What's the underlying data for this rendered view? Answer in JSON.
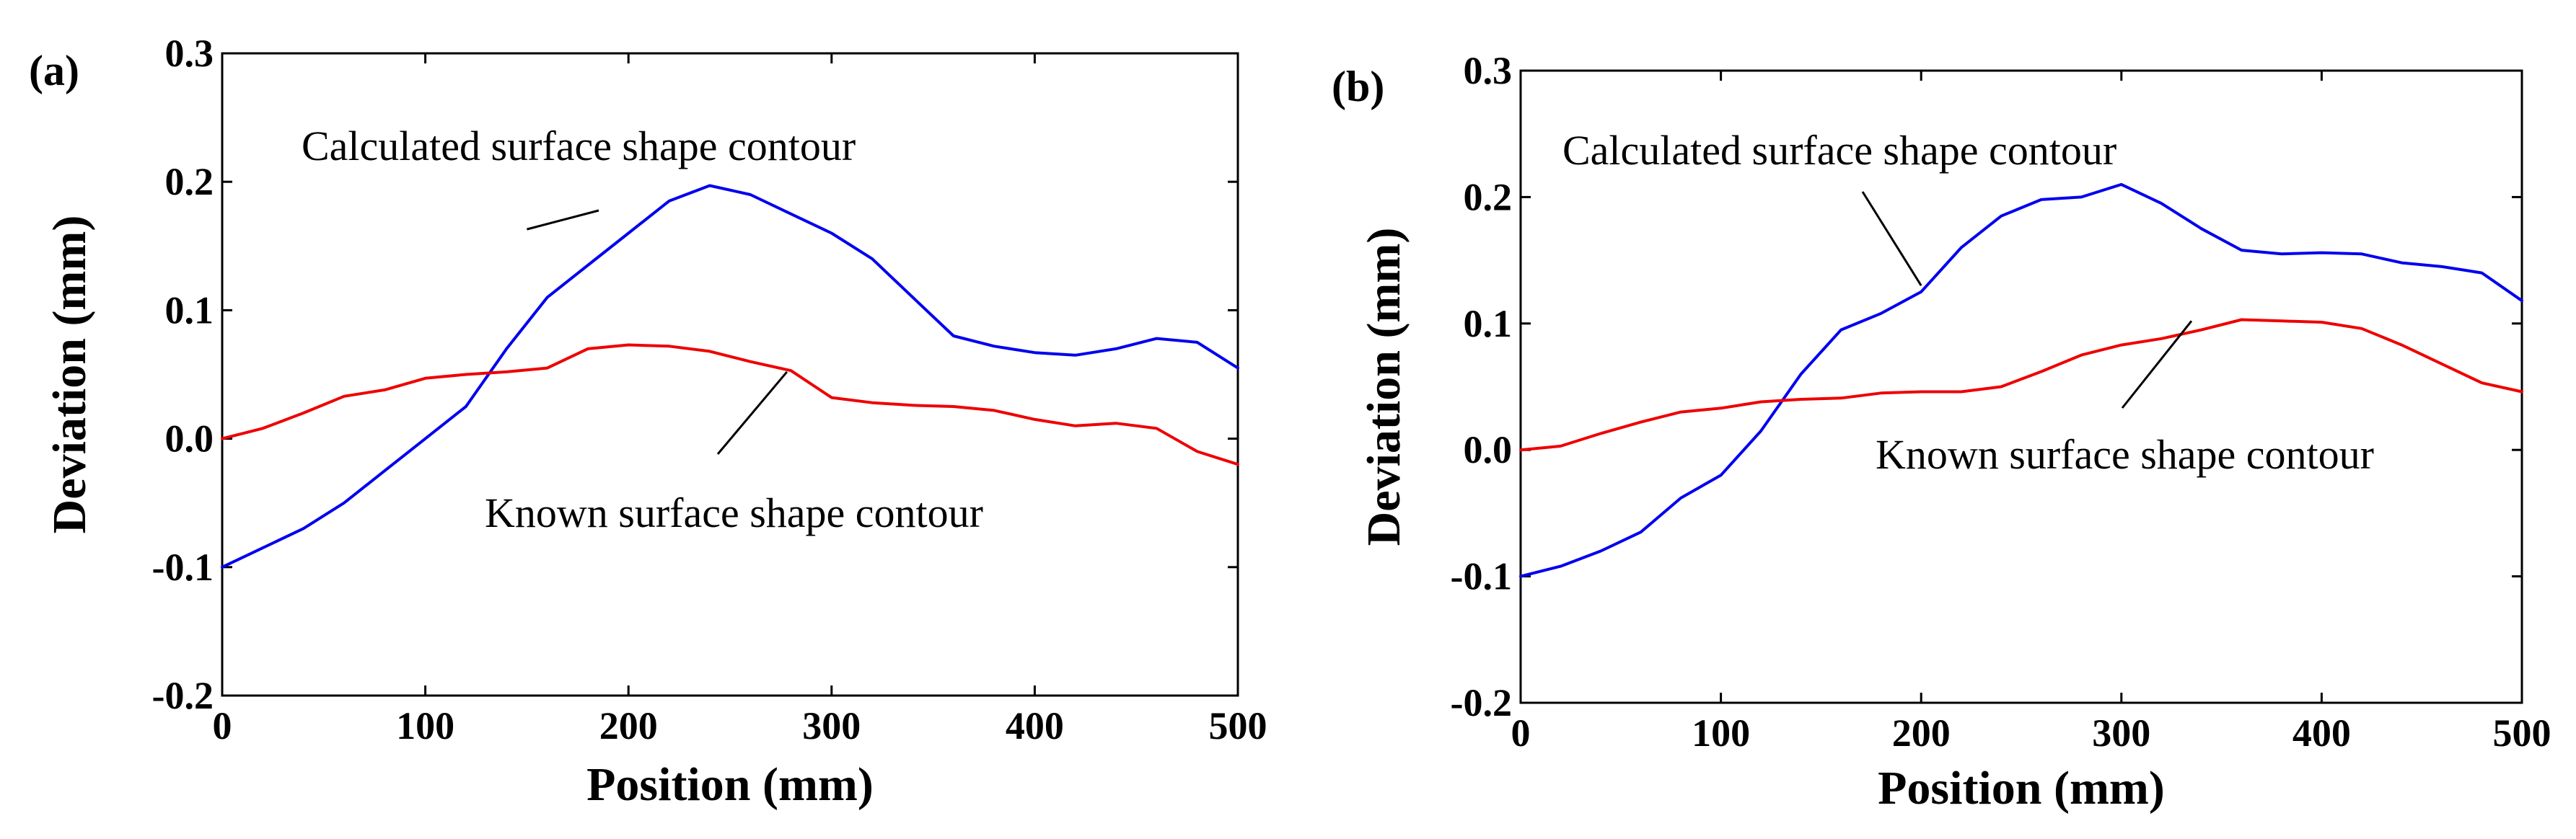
{
  "chart_data": [
    {
      "type": "line",
      "panel_label": "(a)",
      "xlabel": "Position (mm)",
      "ylabel": "Deviation  (mm)",
      "xlim": [
        0,
        500
      ],
      "ylim": [
        -0.2,
        0.3
      ],
      "xticks": [
        "0",
        "100",
        "200",
        "300",
        "400",
        "500"
      ],
      "yticks": [
        "-0.2",
        "-0.1",
        "0.0",
        "0.1",
        "0.2",
        "0.3"
      ],
      "grid": false,
      "annotations": [
        {
          "text": "Calculated surface shape contour",
          "target": "Calculated surface shape contour"
        },
        {
          "text": "Known surface shape contour",
          "target": "Known surface shape contour"
        }
      ],
      "series": [
        {
          "name": "Calculated surface shape contour",
          "color": "#0000ee",
          "x": [
            0,
            20,
            40,
            60,
            80,
            100,
            120,
            140,
            160,
            180,
            200,
            220,
            240,
            260,
            280,
            300,
            320,
            340,
            360,
            380,
            400,
            420,
            440,
            460,
            480,
            500
          ],
          "y": [
            -0.1,
            -0.085,
            -0.07,
            -0.05,
            -0.025,
            0.0,
            0.025,
            0.07,
            0.11,
            0.135,
            0.16,
            0.185,
            0.197,
            0.19,
            0.175,
            0.16,
            0.14,
            0.11,
            0.08,
            0.072,
            0.067,
            0.065,
            0.07,
            0.078,
            0.075,
            0.055
          ]
        },
        {
          "name": "Known surface shape contour",
          "color": "#ee0000",
          "x": [
            0,
            20,
            40,
            60,
            80,
            100,
            120,
            140,
            160,
            180,
            200,
            220,
            240,
            260,
            280,
            300,
            320,
            340,
            360,
            380,
            400,
            420,
            440,
            460,
            480,
            500
          ],
          "y": [
            0.0,
            0.008,
            0.02,
            0.033,
            0.038,
            0.047,
            0.05,
            0.052,
            0.055,
            0.07,
            0.073,
            0.072,
            0.068,
            0.06,
            0.053,
            0.032,
            0.028,
            0.026,
            0.025,
            0.022,
            0.015,
            0.01,
            0.012,
            0.008,
            -0.01,
            -0.02
          ]
        }
      ]
    },
    {
      "type": "line",
      "panel_label": "(b)",
      "xlabel": "Position (mm)",
      "ylabel": "Deviation  (mm)",
      "xlim": [
        0,
        500
      ],
      "ylim": [
        -0.2,
        0.3
      ],
      "xticks": [
        "0",
        "100",
        "200",
        "300",
        "400",
        "500"
      ],
      "yticks": [
        "-0.2",
        "-0.1",
        "0.0",
        "0.1",
        "0.2",
        "0.3"
      ],
      "grid": false,
      "annotations": [
        {
          "text": "Calculated surface shape contour",
          "target": "Calculated surface shape contour"
        },
        {
          "text": "Known surface shape contour",
          "target": "Known surface shape contour"
        }
      ],
      "series": [
        {
          "name": "Calculated surface shape contour",
          "color": "#0000ee",
          "x": [
            0,
            20,
            40,
            60,
            80,
            100,
            120,
            140,
            160,
            180,
            200,
            220,
            240,
            260,
            280,
            300,
            320,
            340,
            360,
            380,
            400,
            420,
            440,
            460,
            480,
            500
          ],
          "y": [
            -0.1,
            -0.092,
            -0.08,
            -0.065,
            -0.038,
            -0.02,
            0.015,
            0.06,
            0.095,
            0.108,
            0.125,
            0.16,
            0.185,
            0.198,
            0.2,
            0.21,
            0.195,
            0.175,
            0.158,
            0.155,
            0.156,
            0.155,
            0.148,
            0.145,
            0.14,
            0.118
          ]
        },
        {
          "name": "Known surface shape contour",
          "color": "#ee0000",
          "x": [
            0,
            20,
            40,
            60,
            80,
            100,
            120,
            140,
            160,
            180,
            200,
            220,
            240,
            260,
            280,
            300,
            320,
            340,
            360,
            380,
            400,
            420,
            440,
            460,
            480,
            500
          ],
          "y": [
            0.0,
            0.003,
            0.013,
            0.022,
            0.03,
            0.033,
            0.038,
            0.04,
            0.041,
            0.045,
            0.046,
            0.046,
            0.05,
            0.062,
            0.075,
            0.083,
            0.088,
            0.095,
            0.103,
            0.102,
            0.101,
            0.096,
            0.083,
            0.068,
            0.053,
            0.046
          ]
        }
      ]
    }
  ]
}
